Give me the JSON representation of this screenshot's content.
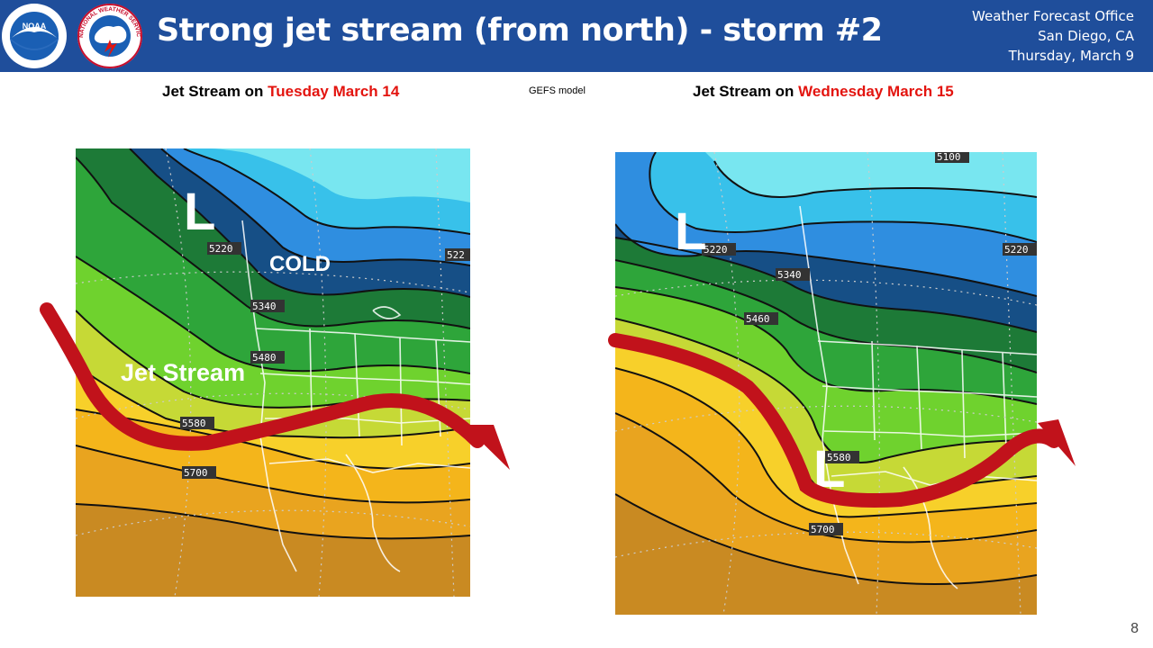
{
  "header": {
    "title": "Strong jet stream (from north) - storm #2",
    "office_line1": "Weather Forecast Office",
    "office_line2": "San Diego, CA",
    "office_line3": "Thursday, March 9",
    "background_color": "#1f4e9b",
    "logos": [
      {
        "name": "noaa-logo",
        "text": "NOAA"
      },
      {
        "name": "nws-logo",
        "text": "NATIONAL WEATHER SERVICE"
      }
    ]
  },
  "model_label": "GEFS model",
  "left_map": {
    "caption_prefix": "Jet Stream on ",
    "caption_date": "Tuesday March 14",
    "low_label": "L",
    "cold_label": "COLD",
    "jet_label": "Jet Stream",
    "contours": [
      "5220",
      "522",
      "5340",
      "5480",
      "5580",
      "5700"
    ]
  },
  "right_map": {
    "caption_prefix": "Jet Stream on ",
    "caption_date": "Wednesday March 15",
    "low_label_north": "L",
    "low_label_south": "L",
    "contours": [
      "5100",
      "5220",
      "5220",
      "5340",
      "5460",
      "5580",
      "5700"
    ]
  },
  "colors": {
    "date_red": "#e3140f",
    "arrow_red": "#c1121b"
  },
  "page_number": "8"
}
